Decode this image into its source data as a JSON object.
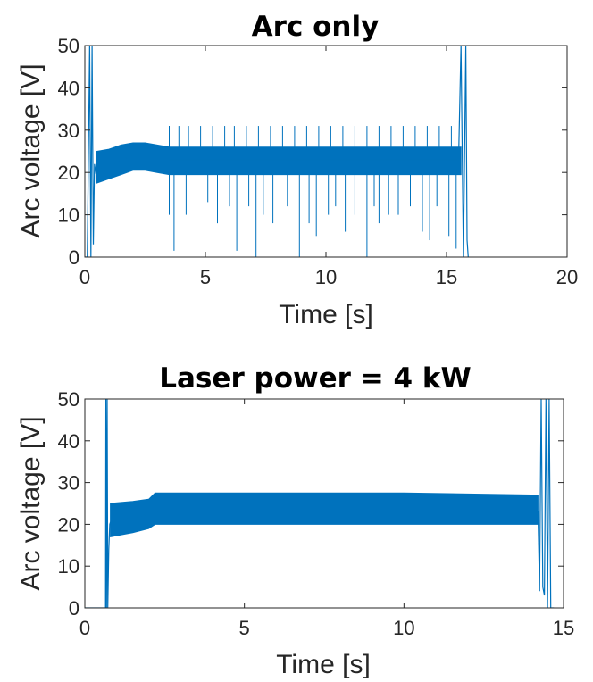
{
  "chart_data": [
    {
      "type": "line",
      "title": "Arc only",
      "xlabel": "Time [s]",
      "ylabel": "Arc voltage [V]",
      "xlim": [
        0,
        20
      ],
      "ylim": [
        0,
        50
      ],
      "xticks": [
        0,
        5,
        10,
        15,
        20
      ],
      "yticks": [
        0,
        10,
        20,
        30,
        40,
        50
      ],
      "grid": false,
      "color": "#0072BD",
      "series": [
        {
          "x": [
            0.0,
            0.1,
            0.2,
            0.25,
            0.3,
            0.35,
            0.4,
            0.45,
            0.5,
            1.0,
            1.5,
            2.0,
            2.5,
            3.0,
            3.5,
            4.0,
            5.0,
            6.0,
            7.0,
            8.0,
            9.0,
            10.0,
            11.0,
            12.0,
            13.0,
            14.0,
            15.0,
            15.5,
            15.6,
            15.7,
            15.8,
            15.85,
            15.9
          ],
          "y": [
            0,
            0,
            50,
            0,
            50,
            3,
            22,
            20,
            20.5,
            21.5,
            23,
            24,
            24,
            23.5,
            23,
            23,
            23,
            23,
            23,
            23,
            23,
            23,
            23,
            23,
            23,
            23,
            23,
            23,
            50,
            0,
            50,
            4,
            0
          ],
          "band_x": [
            0.5,
            1.0,
            1.5,
            2.0,
            2.5,
            3.0,
            3.5,
            4.0,
            5.0,
            6.0,
            7.0,
            8.0,
            9.0,
            10.0,
            11.0,
            12.0,
            13.0,
            14.0,
            15.0,
            15.6
          ],
          "band_low": [
            17.5,
            18.5,
            19.5,
            20.5,
            20.5,
            20,
            19.5,
            19.5,
            19.5,
            19.5,
            19.5,
            19.5,
            19.5,
            19.5,
            19.5,
            19.5,
            19.5,
            19.5,
            19.5,
            19.5
          ],
          "band_high": [
            25,
            25.5,
            26.5,
            27,
            27,
            26.5,
            26,
            26,
            26,
            26,
            26,
            26,
            26,
            26,
            26,
            26,
            26,
            26,
            26,
            26
          ],
          "spikes_down": [
            [
              3.5,
              10
            ],
            [
              3.7,
              1.5
            ],
            [
              4.2,
              10
            ],
            [
              5.1,
              13
            ],
            [
              5.5,
              8
            ],
            [
              6.0,
              12
            ],
            [
              6.3,
              1.5
            ],
            [
              6.8,
              12
            ],
            [
              7.1,
              0
            ],
            [
              7.4,
              10
            ],
            [
              7.8,
              8
            ],
            [
              8.4,
              12
            ],
            [
              8.9,
              0
            ],
            [
              9.3,
              8
            ],
            [
              9.6,
              5
            ],
            [
              10.1,
              10
            ],
            [
              10.4,
              12
            ],
            [
              10.8,
              6
            ],
            [
              11.2,
              10
            ],
            [
              11.7,
              0
            ],
            [
              12.0,
              12
            ],
            [
              12.2,
              8
            ],
            [
              12.6,
              10
            ],
            [
              13.0,
              10
            ],
            [
              13.5,
              12
            ],
            [
              14.0,
              6
            ],
            [
              14.3,
              4
            ],
            [
              14.6,
              12
            ],
            [
              15.1,
              5
            ],
            [
              15.4,
              2
            ]
          ],
          "spikes_up": [
            [
              3.5,
              31
            ],
            [
              3.9,
              31
            ],
            [
              4.3,
              31
            ],
            [
              4.8,
              31
            ],
            [
              5.3,
              31
            ],
            [
              5.8,
              31
            ],
            [
              6.2,
              31
            ],
            [
              6.7,
              31
            ],
            [
              7.2,
              31
            ],
            [
              7.7,
              31
            ],
            [
              8.2,
              31
            ],
            [
              8.7,
              31
            ],
            [
              9.2,
              31
            ],
            [
              9.7,
              31
            ],
            [
              10.2,
              31
            ],
            [
              10.7,
              31
            ],
            [
              11.2,
              31
            ],
            [
              11.7,
              31
            ],
            [
              12.2,
              31
            ],
            [
              12.7,
              31
            ],
            [
              13.2,
              31
            ],
            [
              13.7,
              31
            ],
            [
              14.2,
              31
            ],
            [
              14.7,
              31
            ],
            [
              15.2,
              31
            ]
          ]
        }
      ]
    },
    {
      "type": "line",
      "title": "Laser power = 4 kW",
      "xlabel": "Time [s]",
      "ylabel": "Arc voltage [V]",
      "xlim": [
        0,
        15
      ],
      "ylim": [
        0,
        50
      ],
      "xticks": [
        0,
        5,
        10,
        15
      ],
      "yticks": [
        0,
        10,
        20,
        30,
        40,
        50
      ],
      "grid": false,
      "color": "#0072BD",
      "series": [
        {
          "x": [
            0.0,
            0.65,
            0.66,
            0.68,
            0.7,
            0.72,
            0.75,
            0.78,
            0.8,
            1.5,
            2.0,
            2.5,
            5.0,
            10.0,
            14.2,
            14.25,
            14.3,
            14.35,
            14.4,
            14.45,
            14.5,
            14.55,
            14.6,
            14.7
          ],
          "y": [
            0,
            0,
            50,
            0,
            50,
            0,
            14,
            20,
            20.5,
            21.5,
            22.5,
            23,
            23,
            23,
            23,
            4,
            50,
            5,
            3,
            50,
            0,
            50,
            0,
            0
          ],
          "band_x": [
            0.8,
            1.5,
            2.0,
            2.2,
            3.0,
            5.0,
            10.0,
            14.2
          ],
          "band_low": [
            17,
            18,
            19,
            20,
            20,
            20,
            20,
            20
          ],
          "band_high": [
            25,
            25.5,
            26,
            27.5,
            27.5,
            27.5,
            27.5,
            27
          ]
        }
      ]
    }
  ]
}
